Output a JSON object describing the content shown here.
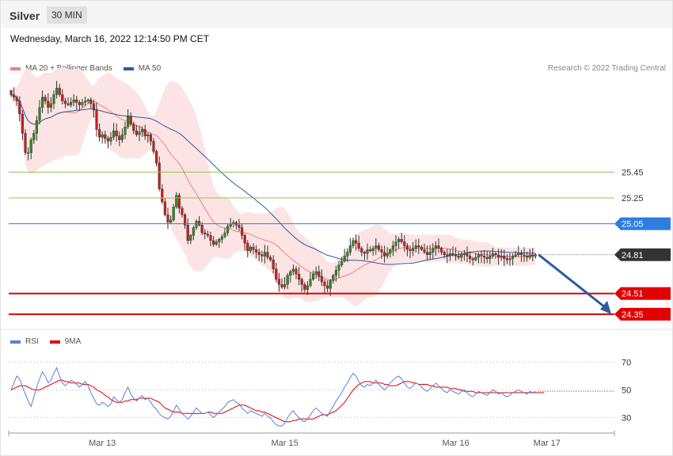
{
  "header": {
    "symbol": "Silver",
    "timeframe": "30 MIN"
  },
  "datetime": "Wednesday, March 16, 2022 12:14:50 PM CET",
  "legend_main": [
    {
      "label": "MA 20 + Bollinger Bands",
      "color": "#f08080"
    },
    {
      "label": "MA 50",
      "color": "#2f5a9e"
    }
  ],
  "credit": "Research © 2022 Trading Central",
  "legend_rsi": [
    {
      "label": "RSI",
      "color": "#5b7fd9"
    },
    {
      "label": "9MA",
      "color": "#e30000"
    }
  ],
  "colors": {
    "up": "#2e8b22",
    "down": "#c62020",
    "resistance": "#8cc45a",
    "pivot": "#2e7de3",
    "support": "#e30000",
    "last": "#333333",
    "arrow": "#2f5a9e"
  },
  "chart_data": [
    {
      "type": "candlestick",
      "title": "",
      "ylim": [
        24.3,
        26.2
      ],
      "x_ticks": [
        {
          "label": "Mar 13",
          "index": 32
        },
        {
          "label": "Mar 15",
          "index": 96
        },
        {
          "label": "Mar 16",
          "index": 156
        },
        {
          "label": "Mar 17",
          "index": 188
        }
      ],
      "closes": [
        26.05,
        26.03,
        26.0,
        25.9,
        25.75,
        25.6,
        25.6,
        25.7,
        25.75,
        25.85,
        25.95,
        26.03,
        26.0,
        25.95,
        25.98,
        26.05,
        26.1,
        26.05,
        26.0,
        25.98,
        25.97,
        25.99,
        26.01,
        25.99,
        25.97,
        25.99,
        26.0,
        26.01,
        25.98,
        25.93,
        25.78,
        25.72,
        25.74,
        25.71,
        25.69,
        25.72,
        25.77,
        25.73,
        25.7,
        25.74,
        25.8,
        25.88,
        25.82,
        25.77,
        25.74,
        25.76,
        25.78,
        25.73,
        25.74,
        25.69,
        25.61,
        25.52,
        25.32,
        25.22,
        25.12,
        25.06,
        25.08,
        25.18,
        25.27,
        25.17,
        25.12,
        25.04,
        24.92,
        24.96,
        25.02,
        25.07,
        25.04,
        24.98,
        24.97,
        24.96,
        24.92,
        24.89,
        24.91,
        24.93,
        24.95,
        24.98,
        25.03,
        25.05,
        25.06,
        25.04,
        25.02,
        24.96,
        24.9,
        24.84,
        24.87,
        24.85,
        24.83,
        24.81,
        24.8,
        24.83,
        24.79,
        24.77,
        24.7,
        24.62,
        24.58,
        24.56,
        24.58,
        24.65,
        24.68,
        24.7,
        24.66,
        24.62,
        24.58,
        24.54,
        24.57,
        24.62,
        24.66,
        24.68,
        24.64,
        24.6,
        24.57,
        24.55,
        24.61,
        24.65,
        24.69,
        24.73,
        24.76,
        24.8,
        24.83,
        24.88,
        24.92,
        24.9,
        24.86,
        24.83,
        24.82,
        24.85,
        24.84,
        24.86,
        24.88,
        24.85,
        24.83,
        24.8,
        24.82,
        24.85,
        24.88,
        24.91,
        24.93,
        24.91,
        24.88,
        24.85,
        24.84,
        24.86,
        24.88,
        24.87,
        24.85,
        24.83,
        24.81,
        24.83,
        24.86,
        24.88,
        24.86,
        24.83,
        24.81,
        24.8,
        24.82,
        24.81,
        24.8,
        24.79,
        24.81,
        24.82,
        24.8,
        24.78,
        24.77,
        24.79,
        24.81,
        24.8,
        24.79,
        24.78,
        24.8,
        24.82,
        24.81,
        24.79,
        24.8,
        24.78,
        24.77,
        24.78,
        24.8,
        24.81,
        24.82,
        24.81,
        24.8,
        24.79,
        24.81,
        24.8,
        24.81
      ],
      "levels": [
        {
          "role": "resistance",
          "value": 25.45,
          "label": "25.45"
        },
        {
          "role": "resistance",
          "value": 25.25,
          "label": "25.25"
        },
        {
          "role": "pivot",
          "value": 25.05,
          "label": "25.05"
        },
        {
          "role": "last",
          "value": 24.81,
          "label": "24.81"
        },
        {
          "role": "support",
          "value": 24.51,
          "label": "24.51"
        },
        {
          "role": "support",
          "value": 24.35,
          "label": "24.35"
        }
      ],
      "forecast": {
        "from": 24.81,
        "to": 24.35
      }
    },
    {
      "type": "line",
      "name": "RSI",
      "ylim": [
        20,
        80
      ],
      "yticks": [
        70,
        50,
        30
      ],
      "rsi": [
        50,
        55,
        60,
        58,
        52,
        47,
        42,
        38,
        45,
        52,
        58,
        63,
        60,
        55,
        57,
        62,
        66,
        60,
        55,
        53,
        55,
        57,
        56,
        54,
        52,
        54,
        56,
        53,
        48,
        44,
        40,
        39,
        41,
        40,
        38,
        40,
        45,
        43,
        41,
        43,
        48,
        52,
        47,
        44,
        42,
        44,
        46,
        43,
        44,
        41,
        38,
        36,
        33,
        31,
        30,
        29,
        31,
        35,
        39,
        36,
        33,
        31,
        29,
        31,
        34,
        37,
        35,
        33,
        33,
        34,
        32,
        30,
        32,
        34,
        36,
        38,
        41,
        42,
        43,
        41,
        40,
        37,
        35,
        33,
        35,
        34,
        33,
        32,
        31,
        33,
        31,
        30,
        27,
        25,
        24,
        24,
        26,
        30,
        33,
        35,
        32,
        30,
        28,
        27,
        29,
        32,
        35,
        37,
        35,
        33,
        32,
        31,
        35,
        38,
        42,
        45,
        48,
        52,
        55,
        59,
        62,
        60,
        56,
        53,
        52,
        54,
        53,
        55,
        57,
        54,
        52,
        50,
        52,
        55,
        57,
        59,
        60,
        58,
        55,
        52,
        51,
        53,
        55,
        54,
        52,
        50,
        49,
        51,
        53,
        55,
        53,
        51,
        49,
        48,
        50,
        49,
        48,
        47,
        49,
        50,
        48,
        46,
        45,
        47,
        49,
        48,
        47,
        46,
        48,
        50,
        49,
        47,
        48,
        46,
        45,
        46,
        48,
        49,
        50,
        49,
        48,
        47,
        49,
        48,
        49
      ],
      "ma9": [
        50,
        51,
        52,
        53,
        53,
        53,
        52,
        51,
        50,
        50,
        50,
        51,
        52,
        53,
        54,
        55,
        56,
        57,
        57,
        56,
        56,
        55,
        55,
        55,
        55,
        54,
        54,
        54,
        53,
        52,
        50,
        49,
        48,
        46,
        45,
        43,
        42,
        41,
        41,
        41,
        42,
        42,
        43,
        43,
        43,
        44,
        44,
        44,
        44,
        44,
        43,
        42,
        41,
        39,
        37,
        36,
        35,
        34,
        34,
        34,
        33,
        33,
        33,
        33,
        33,
        33,
        33,
        33,
        33,
        34,
        34,
        33,
        33,
        33,
        33,
        34,
        35,
        36,
        37,
        38,
        39,
        39,
        39,
        38,
        37,
        36,
        35,
        35,
        34,
        34,
        33,
        32,
        31,
        30,
        29,
        28,
        27,
        27,
        27,
        28,
        28,
        29,
        29,
        29,
        29,
        29,
        29,
        30,
        31,
        32,
        32,
        32,
        33,
        34,
        35,
        37,
        39,
        41,
        44,
        47,
        50,
        52,
        54,
        55,
        56,
        56,
        56,
        55,
        55,
        55,
        55,
        54,
        54,
        53,
        53,
        53,
        54,
        55,
        56,
        56,
        56,
        55,
        55,
        54,
        54,
        54,
        54,
        53,
        53,
        52,
        52,
        52,
        52,
        52,
        51,
        51,
        51,
        50,
        50,
        49,
        49,
        49,
        49,
        48,
        48,
        48,
        48,
        48,
        48,
        48,
        48,
        48,
        48,
        48,
        48,
        48,
        48,
        48,
        48,
        48,
        48,
        48,
        48,
        48,
        48,
        48,
        48,
        48
      ]
    }
  ]
}
